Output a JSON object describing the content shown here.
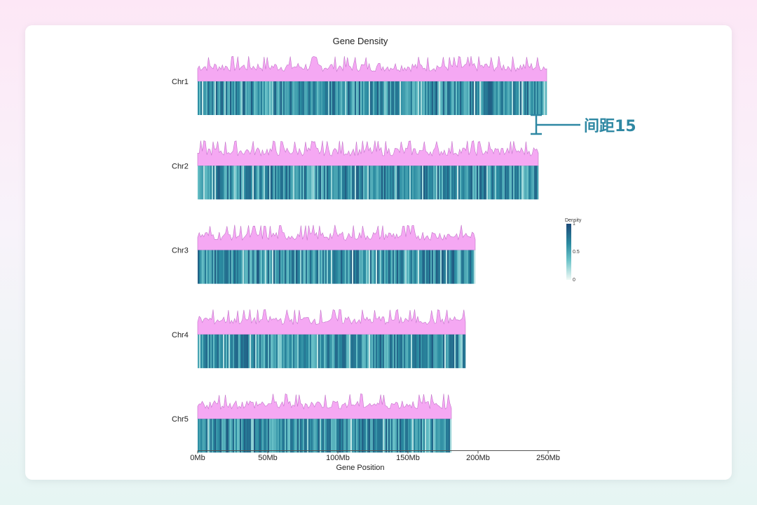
{
  "chart_data": {
    "type": "heatmap",
    "title": "Gene Density",
    "xlabel": "Gene Position",
    "ylabel": "",
    "xlim": [
      0,
      260
    ],
    "x_unit": "Mb",
    "x_ticks": [
      0,
      50,
      100,
      150,
      200,
      250
    ],
    "x_tick_labels": [
      "0Mb",
      "50Mb",
      "100Mb",
      "150Mb",
      "200Mb",
      "250Mb"
    ],
    "chromosomes": [
      {
        "name": "Chr1",
        "length": 249
      },
      {
        "name": "Chr2",
        "length": 243
      },
      {
        "name": "Chr3",
        "length": 198
      },
      {
        "name": "Chr4",
        "length": 191
      },
      {
        "name": "Chr5",
        "length": 181
      }
    ],
    "legend": {
      "title": "Density",
      "min": 0,
      "max": 1,
      "tick_labels": [
        "1",
        "0.5",
        "0"
      ],
      "position": "right",
      "colors": [
        "#1d4a78",
        "#2a8aa0",
        "#6cc3c9",
        "#f2faf6"
      ]
    },
    "density_track_color": "#f5a8f3",
    "density_line_color": "#c275c9",
    "annotation": {
      "text": "间距15",
      "color": "#2f88a3"
    }
  }
}
